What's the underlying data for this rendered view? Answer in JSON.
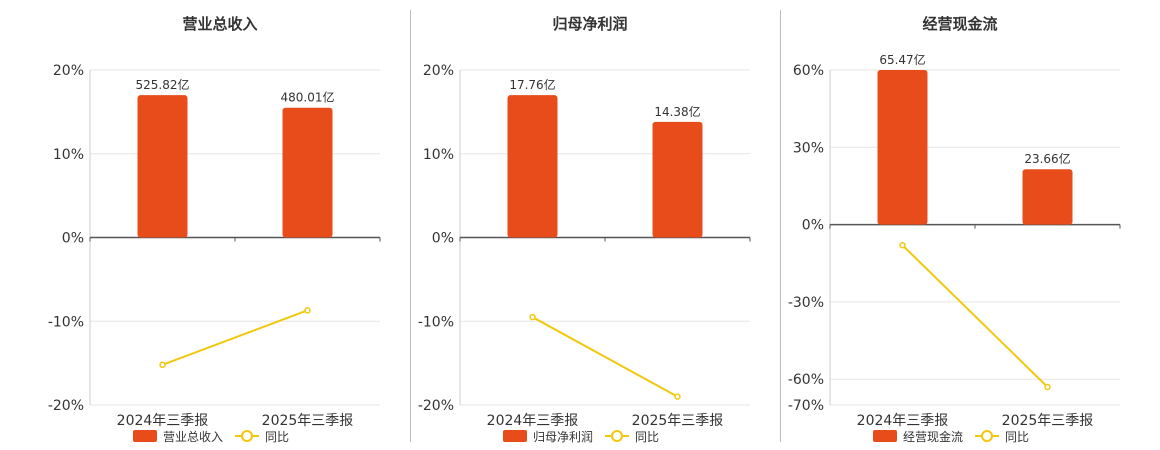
{
  "colors": {
    "bar": "#e84c1b",
    "line": "#f2c80f",
    "grid": "#e6e6e6",
    "axis": "#555555",
    "divider": "#bbbbbb"
  },
  "legend": {
    "line_label": "同比"
  },
  "chart_data": [
    {
      "type": "bar+line",
      "title": "营业总收入",
      "categories": [
        "2024年三季报",
        "2025年三季报"
      ],
      "bar_series": {
        "name": "营业总收入",
        "values": [
          17.0,
          15.5
        ],
        "labels": [
          "525.82亿",
          "480.01亿"
        ]
      },
      "line_series": {
        "name": "同比",
        "values": [
          -15.2,
          -8.7
        ]
      },
      "y_ticks": [
        "20%",
        "10%",
        "0%",
        "-10%",
        "-20%"
      ],
      "ylim": [
        -20,
        20
      ],
      "y_tick_values": [
        20,
        10,
        0,
        -10,
        -20
      ],
      "grid": true,
      "legend_position": "bottom"
    },
    {
      "type": "bar+line",
      "title": "归母净利润",
      "categories": [
        "2024年三季报",
        "2025年三季报"
      ],
      "bar_series": {
        "name": "归母净利润",
        "values": [
          17.0,
          13.8
        ],
        "labels": [
          "17.76亿",
          "14.38亿"
        ]
      },
      "line_series": {
        "name": "同比",
        "values": [
          -9.5,
          -19.0
        ]
      },
      "y_ticks": [
        "20%",
        "10%",
        "0%",
        "-10%",
        "-20%"
      ],
      "ylim": [
        -20,
        20
      ],
      "y_tick_values": [
        20,
        10,
        0,
        -10,
        -20
      ],
      "grid": true,
      "legend_position": "bottom"
    },
    {
      "type": "bar+line",
      "title": "经营现金流",
      "categories": [
        "2024年三季报",
        "2025年三季报"
      ],
      "bar_series": {
        "name": "经营现金流",
        "values": [
          60.0,
          21.5
        ],
        "labels": [
          "65.47亿",
          "23.66亿"
        ]
      },
      "line_series": {
        "name": "同比",
        "values": [
          -8.0,
          -63.0
        ]
      },
      "y_ticks": [
        "60%",
        "30%",
        "0%",
        "-30%",
        "-60%",
        "-70%"
      ],
      "ylim": [
        -70,
        60
      ],
      "y_tick_values": [
        60,
        30,
        0,
        -30,
        -60,
        -70
      ],
      "grid": true,
      "legend_position": "bottom"
    }
  ]
}
